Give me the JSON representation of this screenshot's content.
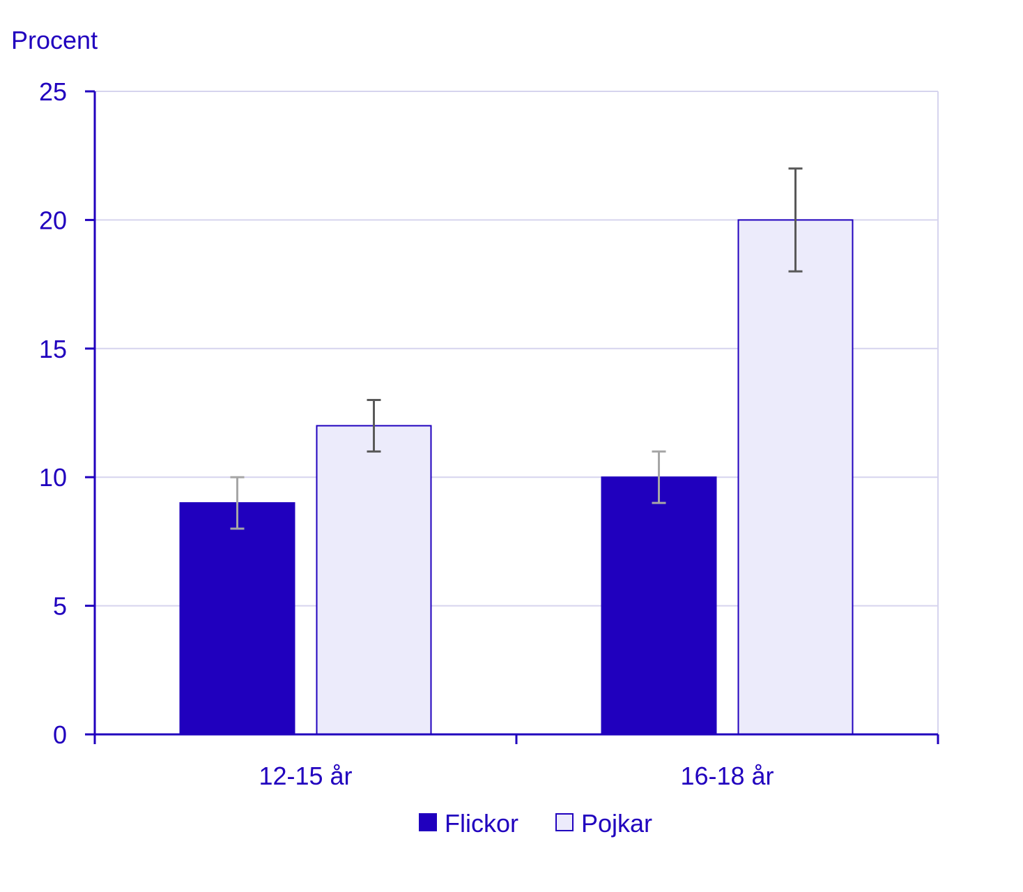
{
  "chart_data": {
    "type": "bar",
    "ylabel": "Procent",
    "categories": [
      "12-15 år",
      "16-18 år"
    ],
    "ylim": [
      0,
      25
    ],
    "yticks": [
      0,
      5,
      10,
      15,
      20,
      25
    ],
    "grid": true,
    "legend_position": "bottom-center",
    "series": [
      {
        "name": "Flickor",
        "values": [
          9,
          10
        ],
        "error_low": [
          8,
          9
        ],
        "error_high": [
          10,
          11
        ],
        "color": "#2000BE",
        "stroke": "#2000BE",
        "error_color": "#A6A6A6"
      },
      {
        "name": "Pojkar",
        "values": [
          12,
          20
        ],
        "error_low": [
          11,
          18
        ],
        "error_high": [
          13,
          22
        ],
        "color": "#ECEBFB",
        "stroke": "#2000BE",
        "error_color": "#595959"
      }
    ]
  },
  "colors": {
    "text": "#2000BE",
    "axis": "#2000BE",
    "grid": "#D6D4EE"
  }
}
